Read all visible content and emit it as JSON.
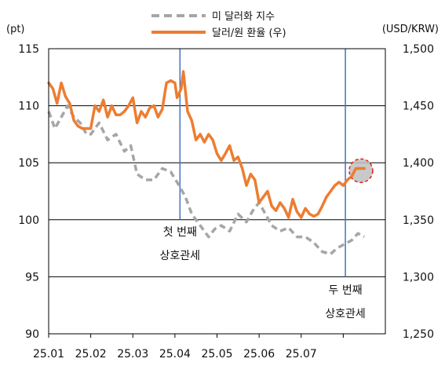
{
  "chart_data": {
    "type": "line",
    "left_unit": "(pt)",
    "right_unit": "(USD/KRW)",
    "y_left": {
      "min": 90,
      "max": 115,
      "ticks": [
        90,
        95,
        100,
        105,
        110,
        115
      ],
      "tick_labels": [
        "90",
        "95",
        "100",
        "105",
        "110",
        "115"
      ]
    },
    "y_right": {
      "min": 1250,
      "max": 1500,
      "ticks": [
        1250,
        1300,
        1350,
        1400,
        1450,
        1500
      ],
      "tick_labels": [
        "1,250",
        "1,300",
        "1,350",
        "1,400",
        "1,450",
        "1,500"
      ]
    },
    "x_axis": {
      "min": 0,
      "max": 8,
      "ticks": [
        0,
        1,
        2,
        3,
        4,
        5,
        6,
        7
      ],
      "tick_labels": [
        "25.01",
        "25.02",
        "25.03",
        "25.04",
        "25.05",
        "25.06",
        "25.07"
      ]
    },
    "grid": "horizontal",
    "legend_position": "top-center",
    "series": [
      {
        "name": "미 달러화 지수",
        "axis": "left",
        "style": "dashed",
        "color": "#a6a6a6",
        "x": [
          0.0,
          0.15,
          0.3,
          0.45,
          0.6,
          0.75,
          0.9,
          1.0,
          1.2,
          1.4,
          1.6,
          1.8,
          1.95,
          2.1,
          2.3,
          2.5,
          2.7,
          2.9,
          3.1,
          3.25,
          3.4,
          3.5,
          3.6,
          3.8,
          3.95,
          4.1,
          4.3,
          4.5,
          4.7,
          4.85,
          5.0,
          5.15,
          5.3,
          5.5,
          5.7,
          5.9,
          6.1,
          6.3,
          6.5,
          6.7,
          6.85,
          7.0,
          7.2,
          7.35,
          7.5
        ],
        "values": [
          109.5,
          108.0,
          109.0,
          110.0,
          109.0,
          108.5,
          107.5,
          107.5,
          108.5,
          107.0,
          107.5,
          106.0,
          106.5,
          104.0,
          103.5,
          103.5,
          104.5,
          104.2,
          103.0,
          102.0,
          100.5,
          100.0,
          99.5,
          98.5,
          99.2,
          99.5,
          99.0,
          100.5,
          99.8,
          100.8,
          101.5,
          100.5,
          99.5,
          99.0,
          99.3,
          98.5,
          98.5,
          98.0,
          97.2,
          97.0,
          97.5,
          97.8,
          98.2,
          98.8,
          98.5
        ]
      },
      {
        "name": "달러/원 환율 (우)",
        "axis": "right",
        "style": "solid",
        "color": "#ed7d31",
        "x": [
          0.0,
          0.1,
          0.2,
          0.3,
          0.4,
          0.5,
          0.6,
          0.7,
          0.8,
          0.9,
          1.0,
          1.1,
          1.2,
          1.3,
          1.4,
          1.5,
          1.6,
          1.7,
          1.8,
          1.9,
          2.0,
          2.1,
          2.2,
          2.3,
          2.4,
          2.5,
          2.6,
          2.7,
          2.8,
          2.9,
          3.0,
          3.05,
          3.15,
          3.2,
          3.3,
          3.4,
          3.5,
          3.6,
          3.7,
          3.8,
          3.9,
          4.0,
          4.1,
          4.2,
          4.3,
          4.4,
          4.5,
          4.6,
          4.7,
          4.8,
          4.9,
          5.0,
          5.1,
          5.2,
          5.3,
          5.4,
          5.5,
          5.6,
          5.7,
          5.8,
          5.9,
          6.0,
          6.1,
          6.2,
          6.3,
          6.4,
          6.5,
          6.6,
          6.7,
          6.8,
          6.9,
          7.0,
          7.1,
          7.2,
          7.3,
          7.4,
          7.5
        ],
        "values": [
          1470,
          1465,
          1452,
          1470,
          1458,
          1452,
          1437,
          1432,
          1430,
          1430,
          1430,
          1450,
          1445,
          1455,
          1440,
          1450,
          1442,
          1442,
          1445,
          1450,
          1457,
          1435,
          1445,
          1440,
          1448,
          1450,
          1440,
          1447,
          1470,
          1472,
          1470,
          1457,
          1465,
          1480,
          1445,
          1437,
          1420,
          1425,
          1418,
          1425,
          1420,
          1408,
          1402,
          1408,
          1415,
          1402,
          1405,
          1395,
          1380,
          1390,
          1385,
          1365,
          1370,
          1375,
          1362,
          1358,
          1365,
          1360,
          1352,
          1368,
          1357,
          1352,
          1360,
          1355,
          1353,
          1355,
          1362,
          1370,
          1375,
          1380,
          1383,
          1380,
          1385,
          1388,
          1395,
          1395,
          1395
        ]
      }
    ],
    "markers": [
      {
        "x": 3.12,
        "lines": [
          "첫 번째",
          "상호관세"
        ]
      },
      {
        "x": 7.05,
        "lines": [
          "두 번째",
          "상호관세"
        ]
      }
    ],
    "highlight": {
      "x": 7.42,
      "axis": "right",
      "value": 1393,
      "style": "red dashed circle, gray fill"
    }
  }
}
